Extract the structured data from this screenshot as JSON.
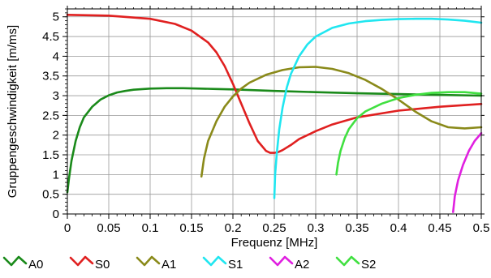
{
  "chart_data": {
    "type": "line",
    "title": "",
    "xlabel": "Frequenz [MHz]",
    "ylabel": "Gruppengeschwindigkeit [m/ms]",
    "xlim": [
      0,
      0.5
    ],
    "ylim": [
      0,
      5.2
    ],
    "x_ticks": [
      0,
      0.05,
      0.1,
      0.15,
      0.2,
      0.25,
      0.3,
      0.35,
      0.4,
      0.45,
      0.5
    ],
    "x_tick_labels": [
      "0",
      "0.05",
      "0.1",
      "0.15",
      "0.2",
      "0.25",
      "0.3",
      "0.35",
      "0.4",
      "0.45",
      "0.5"
    ],
    "y_ticks": [
      0,
      0.5,
      1,
      1.5,
      2,
      2.5,
      3,
      3.5,
      4,
      4.5,
      5
    ],
    "y_tick_labels": [
      "0",
      "0.5",
      "1",
      "1.5",
      "2",
      "2.5",
      "3",
      "3.5",
      "4",
      "4.5",
      "5"
    ],
    "grid": true,
    "legend_position": "bottom",
    "series": [
      {
        "name": "A0",
        "color": "#1a8a1a",
        "x": [
          0.0,
          0.002,
          0.005,
          0.01,
          0.015,
          0.02,
          0.03,
          0.04,
          0.05,
          0.06,
          0.07,
          0.08,
          0.1,
          0.12,
          0.14,
          0.16,
          0.18,
          0.2,
          0.25,
          0.3,
          0.35,
          0.4,
          0.45,
          0.5
        ],
        "y": [
          0.55,
          0.9,
          1.35,
          1.85,
          2.2,
          2.45,
          2.72,
          2.9,
          3.01,
          3.08,
          3.12,
          3.15,
          3.18,
          3.19,
          3.19,
          3.18,
          3.17,
          3.16,
          3.12,
          3.09,
          3.06,
          3.04,
          3.02,
          3.0
        ]
      },
      {
        "name": "S0",
        "color": "#e02020",
        "x": [
          0.0,
          0.05,
          0.1,
          0.13,
          0.15,
          0.17,
          0.18,
          0.19,
          0.2,
          0.21,
          0.22,
          0.23,
          0.24,
          0.245,
          0.25,
          0.255,
          0.26,
          0.27,
          0.28,
          0.3,
          0.32,
          0.35,
          0.4,
          0.45,
          0.5
        ],
        "y": [
          5.05,
          5.03,
          4.95,
          4.82,
          4.65,
          4.35,
          4.1,
          3.75,
          3.3,
          2.8,
          2.3,
          1.85,
          1.6,
          1.55,
          1.55,
          1.57,
          1.62,
          1.75,
          1.9,
          2.1,
          2.27,
          2.45,
          2.62,
          2.72,
          2.79
        ]
      },
      {
        "name": "A1",
        "color": "#8a8a1a",
        "x": [
          0.162,
          0.165,
          0.17,
          0.18,
          0.19,
          0.2,
          0.21,
          0.22,
          0.24,
          0.26,
          0.28,
          0.3,
          0.32,
          0.34,
          0.36,
          0.38,
          0.4,
          0.42,
          0.44,
          0.46,
          0.48,
          0.5
        ],
        "y": [
          0.95,
          1.4,
          1.85,
          2.35,
          2.72,
          2.98,
          3.18,
          3.33,
          3.53,
          3.65,
          3.72,
          3.73,
          3.68,
          3.57,
          3.4,
          3.17,
          2.9,
          2.6,
          2.35,
          2.2,
          2.17,
          2.2
        ]
      },
      {
        "name": "S1",
        "color": "#20e6f0",
        "x": [
          0.25,
          0.251,
          0.253,
          0.256,
          0.26,
          0.265,
          0.27,
          0.28,
          0.29,
          0.3,
          0.32,
          0.34,
          0.36,
          0.38,
          0.4,
          0.42,
          0.44,
          0.46,
          0.48,
          0.5
        ],
        "y": [
          0.4,
          1.0,
          1.55,
          2.15,
          2.7,
          3.2,
          3.55,
          4.0,
          4.3,
          4.5,
          4.72,
          4.83,
          4.89,
          4.92,
          4.94,
          4.95,
          4.95,
          4.93,
          4.9,
          4.85
        ]
      },
      {
        "name": "A2",
        "color": "#e020e0",
        "x": [
          0.466,
          0.468,
          0.472,
          0.478,
          0.485,
          0.492,
          0.5
        ],
        "y": [
          0.05,
          0.45,
          0.85,
          1.25,
          1.6,
          1.85,
          2.05
        ]
      },
      {
        "name": "S2",
        "color": "#40e040",
        "x": [
          0.325,
          0.327,
          0.33,
          0.335,
          0.34,
          0.35,
          0.36,
          0.38,
          0.4,
          0.42,
          0.44,
          0.46,
          0.48,
          0.5
        ],
        "y": [
          1.0,
          1.3,
          1.6,
          1.92,
          2.15,
          2.43,
          2.6,
          2.8,
          2.94,
          3.02,
          3.07,
          3.09,
          3.09,
          3.05
        ]
      }
    ]
  }
}
